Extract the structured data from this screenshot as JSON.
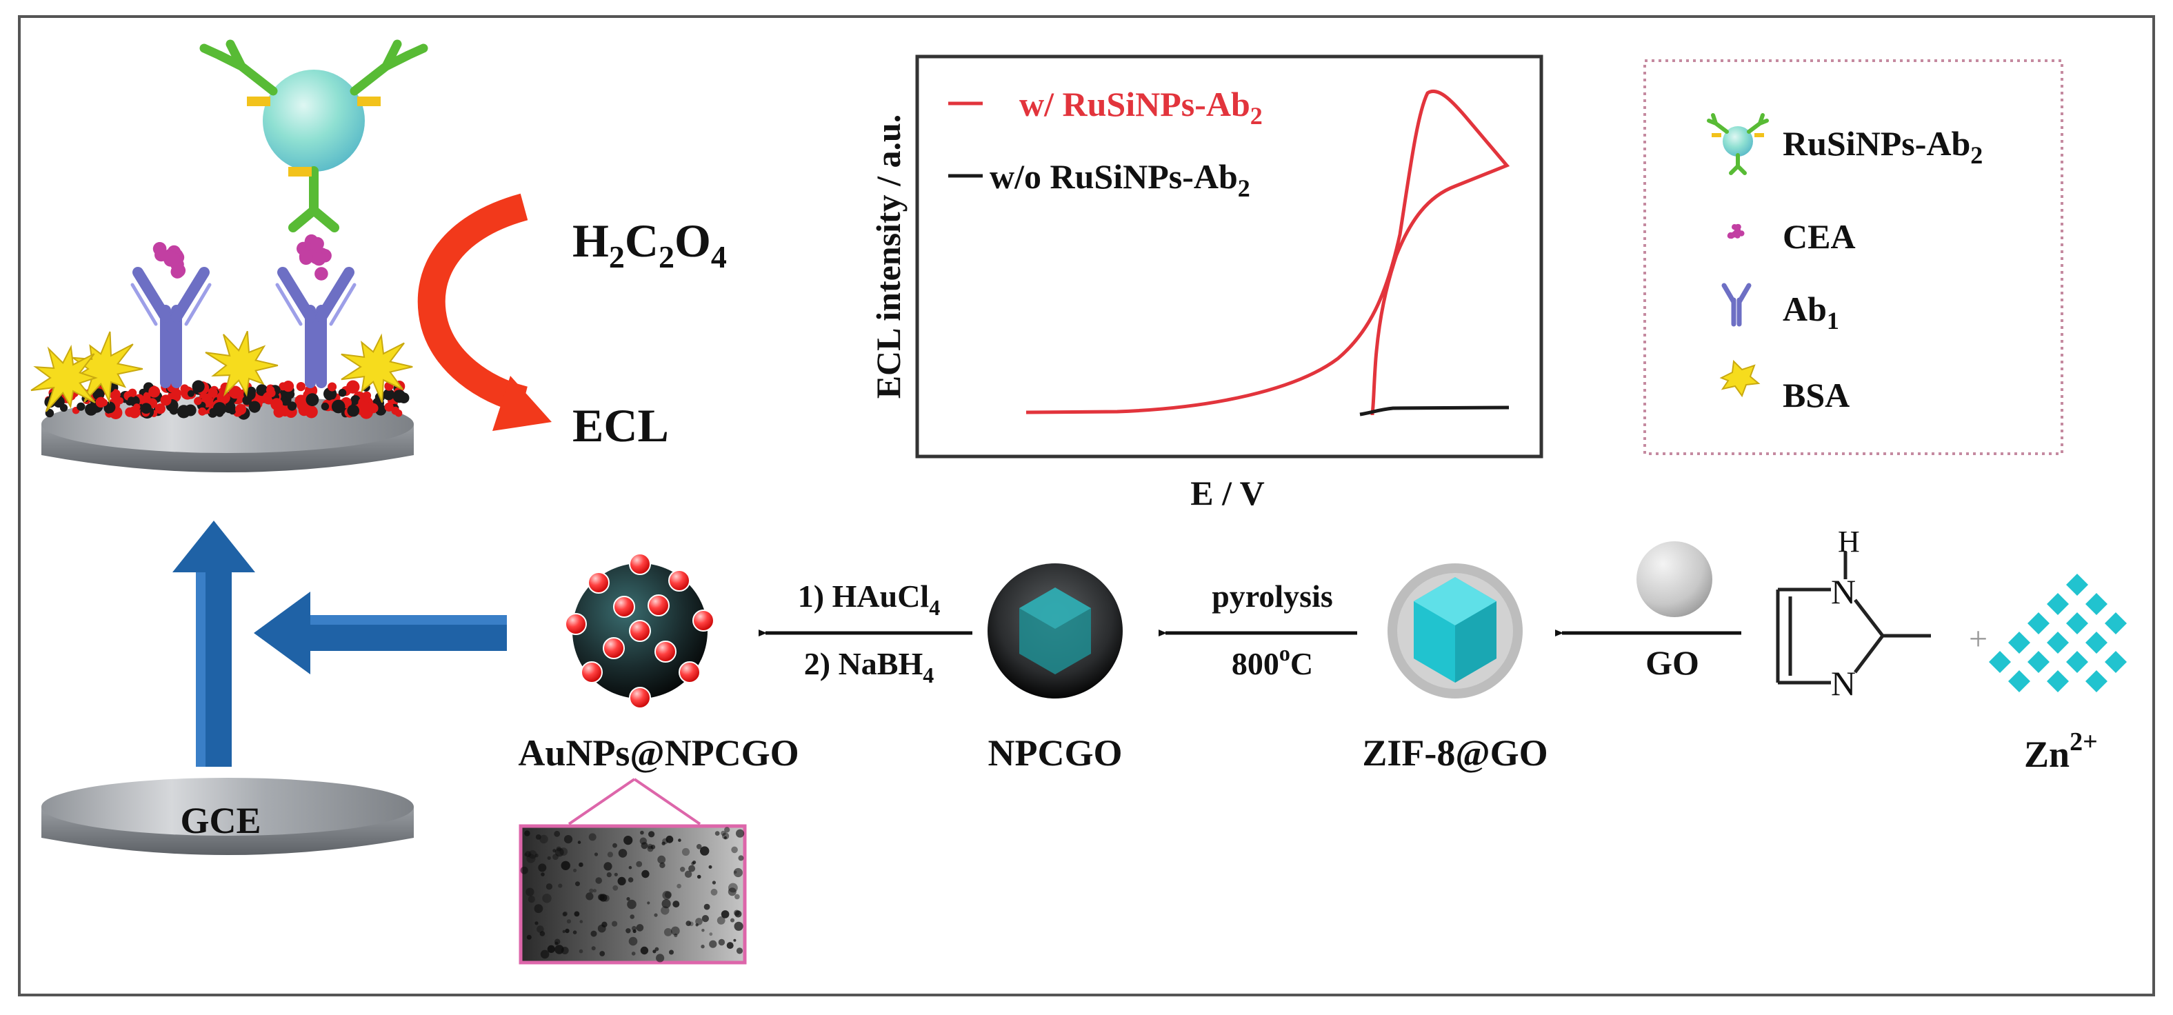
{
  "colors": {
    "frame": "#555555",
    "red_curve": "#e2343c",
    "black_curve": "#1a1a1a",
    "electrode": "#a9acb0",
    "arrow_blue": "#1f62a6",
    "arrow_red": "#f2391b",
    "legend_border": "#c58aa0",
    "cyan": "#21c3cf",
    "magenta": "#c23fa2",
    "gold": "#f6dc1d",
    "ab1": "#6d6fc4",
    "ab2": "#58bb35",
    "inset_border": "#dd66aa"
  },
  "top": {
    "reaction_reagent": {
      "main": "H",
      "sub1": "2",
      "mid": "C",
      "sub2": "2",
      "tail": "O",
      "sub3": "4"
    },
    "reaction_product": "ECL"
  },
  "ecl_plot": {
    "ylabel": "ECL intensity / a.u.",
    "xlabel": "E / V",
    "legend_with": {
      "main": "w/ RuSiNPs-Ab",
      "sub": "2"
    },
    "legend_without": {
      "main": "w/o RuSiNPs-Ab",
      "sub": "2"
    }
  },
  "legend": {
    "ab2": {
      "main": "RuSiNPs-Ab",
      "sub": "2",
      "icon": "antibody-nanoparticle-icon"
    },
    "cea": {
      "label": "CEA",
      "icon": "cea-antigen-icon"
    },
    "ab1": {
      "main": "Ab",
      "sub": "1",
      "icon": "y-antibody-icon"
    },
    "bsa": {
      "label": "BSA",
      "icon": "bsa-star-icon"
    }
  },
  "synthesis": {
    "zn": {
      "main": "Zn",
      "sup": "2+"
    },
    "go_label": "GO",
    "zif": "ZIF-8@GO",
    "pyrolysis_top": "pyrolysis",
    "pyrolysis_bottom": {
      "main": "800",
      "sup": "o",
      "tail": "C"
    },
    "npcgo": "NPCGO",
    "step1": {
      "main": "1) HAuCl",
      "sub": "4"
    },
    "step2": {
      "main": "2) NaBH",
      "sub": "4"
    },
    "aunps": "AuNPs@NPCGO",
    "electrode": "GCE",
    "imidazole_atom_top": "N",
    "imidazole_h": "H",
    "imidazole_atom_bottom": "N",
    "plus": "+"
  }
}
